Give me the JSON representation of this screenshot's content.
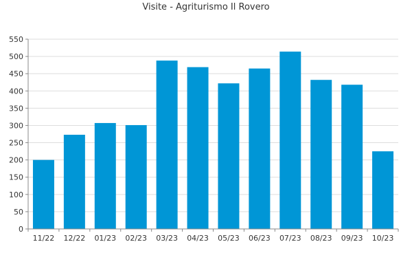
{
  "chart_data": {
    "type": "bar",
    "title": "Visite - Agriturismo Il Rovero",
    "xlabel": "",
    "ylabel": "",
    "categories": [
      "11/22",
      "12/22",
      "01/23",
      "02/23",
      "03/23",
      "04/23",
      "05/23",
      "06/23",
      "07/23",
      "08/23",
      "09/23",
      "10/23"
    ],
    "values": [
      200,
      273,
      307,
      301,
      488,
      469,
      422,
      465,
      514,
      432,
      418,
      225
    ],
    "ylim": [
      0,
      550
    ],
    "yticks": [
      0,
      50,
      100,
      150,
      200,
      250,
      300,
      350,
      400,
      450,
      500,
      550
    ],
    "grid": true,
    "legend": "none",
    "bar_color": "#0096d6",
    "grid_color": "#dddddd",
    "axis_color": "#888888"
  }
}
